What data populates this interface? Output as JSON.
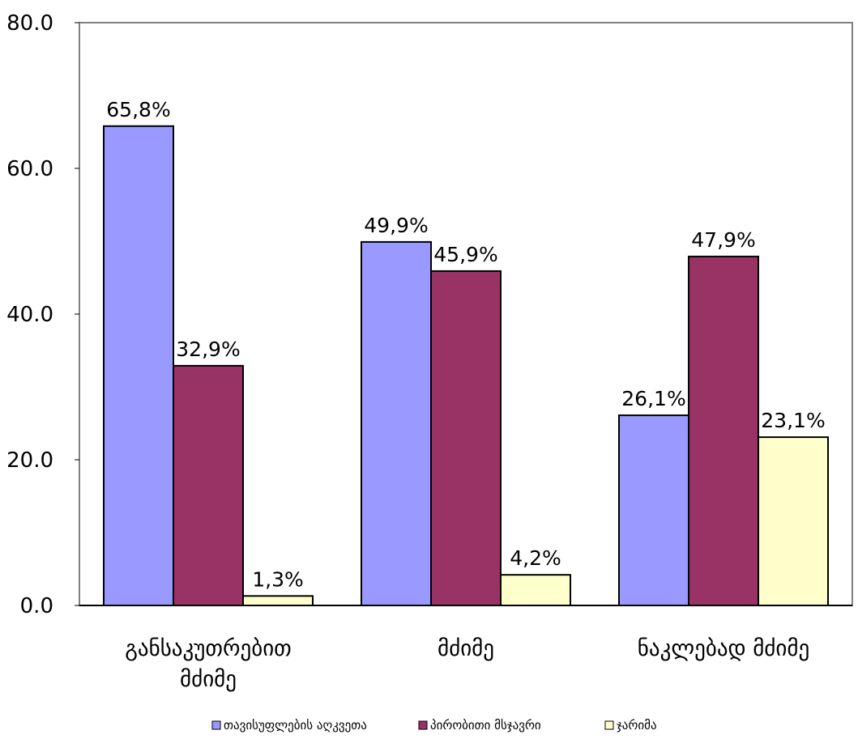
{
  "chart_data": {
    "type": "bar",
    "categories": [
      [
        "განსაკუთრებით",
        "მძიმე"
      ],
      [
        "მძიმე"
      ],
      [
        "ნაკლებად მძიმე"
      ]
    ],
    "series": [
      {
        "name": "თავისუფლების აღკვეთა",
        "color": "#9999FF",
        "values": [
          65.8,
          49.9,
          26.1
        ],
        "labels": [
          "65,8%",
          "49,9%",
          "26,1%"
        ]
      },
      {
        "name": "პირობითი მსჯავრი",
        "color": "#993366",
        "values": [
          32.9,
          45.9,
          47.9
        ],
        "labels": [
          "32,9%",
          "45,9%",
          "47,9%"
        ]
      },
      {
        "name": "ჯარიმა",
        "color": "#FFFFCC",
        "values": [
          1.3,
          4.2,
          23.1
        ],
        "labels": [
          "1,3%",
          "4,2%",
          "23,1%"
        ]
      }
    ],
    "yticks": [
      "0.0",
      "20.0",
      "40.0",
      "60.0",
      "80.0"
    ],
    "ylim": [
      0,
      80
    ],
    "grid": false,
    "legend": "bottom"
  }
}
